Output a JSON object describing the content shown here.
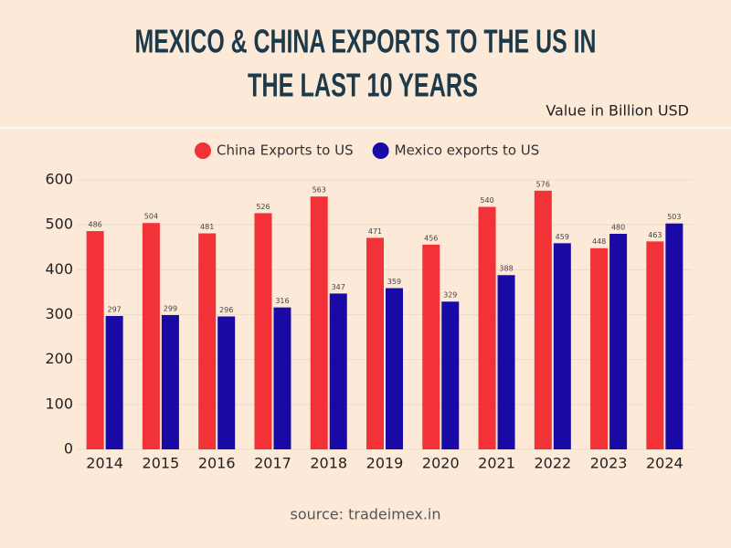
{
  "chart_data": {
    "type": "bar",
    "title": [
      "MEXICO & CHINA EXPORTS TO THE US IN",
      "THE LAST 10 YEARS"
    ],
    "subtitle": "Value in Billion USD",
    "source": "source: tradeimex.in",
    "categories": [
      "2014",
      "2015",
      "2016",
      "2017",
      "2018",
      "2019",
      "2020",
      "2021",
      "2022",
      "2023",
      "2024"
    ],
    "series": [
      {
        "name": "China Exports to US",
        "color": "#f23236",
        "values": [
          486,
          504,
          481,
          526,
          563,
          471,
          456,
          540,
          576,
          448,
          463
        ]
      },
      {
        "name": "Mexico exports to US",
        "color": "#1a0aa5",
        "values": [
          297,
          299,
          296,
          316,
          347,
          359,
          329,
          388,
          459,
          480,
          503
        ]
      }
    ],
    "ylim": [
      0,
      600
    ],
    "yticks": [
      0,
      100,
      200,
      300,
      400,
      500,
      600
    ],
    "grid": true
  }
}
